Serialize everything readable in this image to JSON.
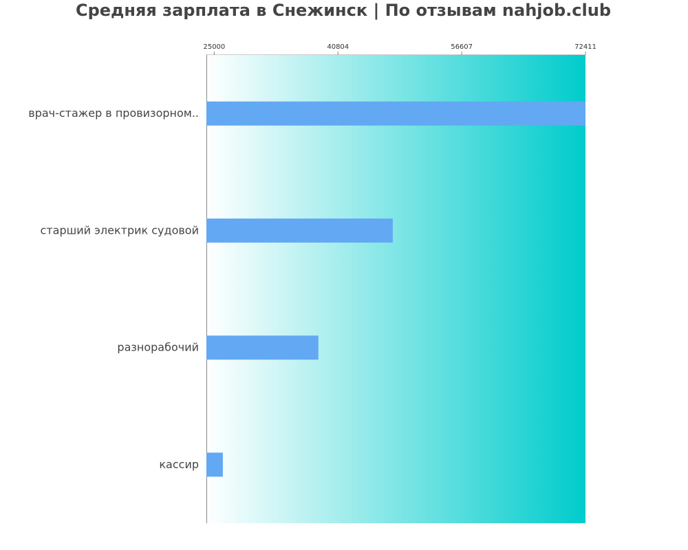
{
  "chart_data": {
    "type": "bar",
    "orientation": "horizontal",
    "title": "Средняя зарплата в Снежинск | По отзывам nahjob.club",
    "categories": [
      "врач-стажер в провизорном..",
      "старший электрик судовой",
      "разнорабочий",
      "кассир"
    ],
    "values": [
      72411,
      47800,
      38300,
      26100
    ],
    "xlim": [
      24000,
      72411
    ],
    "xticks": [
      25000,
      40804,
      56607,
      72411
    ],
    "xlabel": "",
    "ylabel": "",
    "axis_position": "top",
    "grid": false,
    "legend": "none",
    "colors": {
      "bar": "#63a8f2",
      "background_start": "#ffffff",
      "background_end": "#00cccc",
      "title": "#444444",
      "label": "#444444",
      "axis": "#888888"
    }
  }
}
